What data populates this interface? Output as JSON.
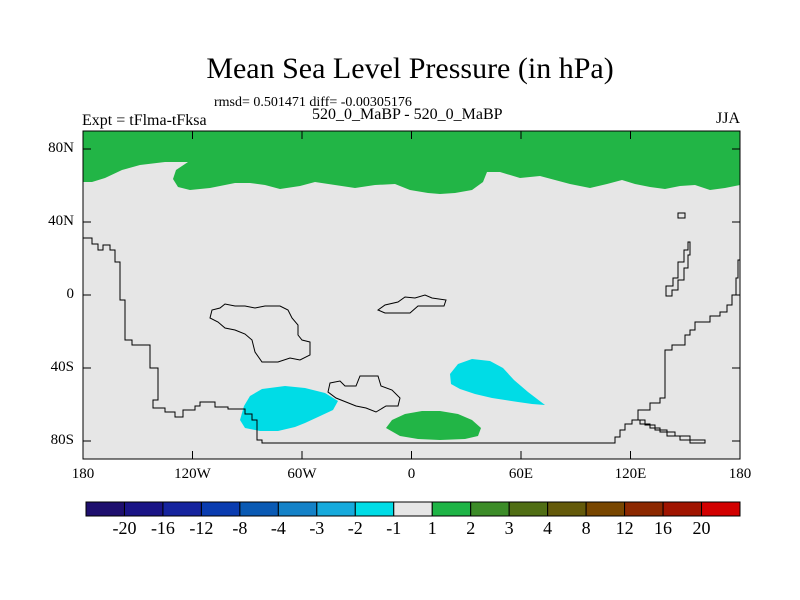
{
  "title": "Mean Sea Level Pressure (in hPa)",
  "stats": "rmsd= 0.501471 diff= -0.00305176",
  "experiment": "Expt = tFlma-tFksa",
  "runs": "520_0_MaBP - 520_0_MaBP",
  "season": "JJA",
  "y_ticks": [
    "80N",
    "40N",
    "0",
    "40S",
    "80S"
  ],
  "x_ticks": [
    "180",
    "120W",
    "60W",
    "0",
    "60E",
    "120E",
    "180"
  ],
  "colorbar": {
    "labels": [
      "-20",
      "-16",
      "-12",
      "-8",
      "-4",
      "-3",
      "-2",
      "-1",
      "1",
      "2",
      "3",
      "4",
      "8",
      "12",
      "16",
      "20"
    ],
    "colors": [
      "#1e0f6e",
      "#1a1486",
      "#16249e",
      "#0a3cb0",
      "#0a5ab4",
      "#1482c8",
      "#16aadc",
      "#00dce6",
      "#e6e6e6",
      "#1eb446",
      "#3c8c28",
      "#506e14",
      "#645a0a",
      "#784600",
      "#8c2800",
      "#a01400",
      "#d20000"
    ]
  },
  "colors": {
    "background_anomaly": "#e6e6e6",
    "positive_anomaly": "#22b546",
    "negative_anomaly": "#00dce6",
    "coastline": "#000000"
  }
}
